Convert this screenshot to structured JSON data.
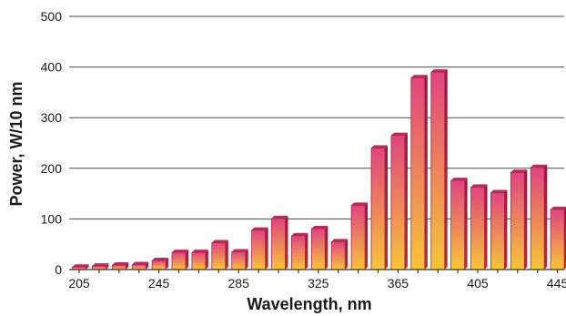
{
  "chart_data": {
    "type": "bar",
    "title": "",
    "xlabel": "Wavelength, nm",
    "ylabel": "Power, W/10 nm",
    "ylim": [
      0,
      500
    ],
    "yticks": [
      "0",
      "100",
      "200",
      "300",
      "400",
      "500"
    ],
    "xticks": [
      "205",
      "245",
      "285",
      "325",
      "365",
      "405",
      "445"
    ],
    "grid": true,
    "categories": [
      "205",
      "215",
      "225",
      "235",
      "245",
      "255",
      "265",
      "275",
      "285",
      "295",
      "305",
      "315",
      "325",
      "335",
      "345",
      "355",
      "365",
      "375",
      "385",
      "395",
      "405",
      "415",
      "425",
      "435",
      "445"
    ],
    "values": [
      5,
      7,
      9,
      10,
      18,
      34,
      34,
      53,
      35,
      78,
      101,
      67,
      81,
      55,
      127,
      240,
      265,
      379,
      390,
      176,
      163,
      152,
      192,
      202,
      119
    ],
    "colors": {
      "bar_top": "#e0447e",
      "bar_bottom": "#f7c637",
      "bar_side": "#a0183f",
      "grid": "#4a4a4a"
    }
  }
}
